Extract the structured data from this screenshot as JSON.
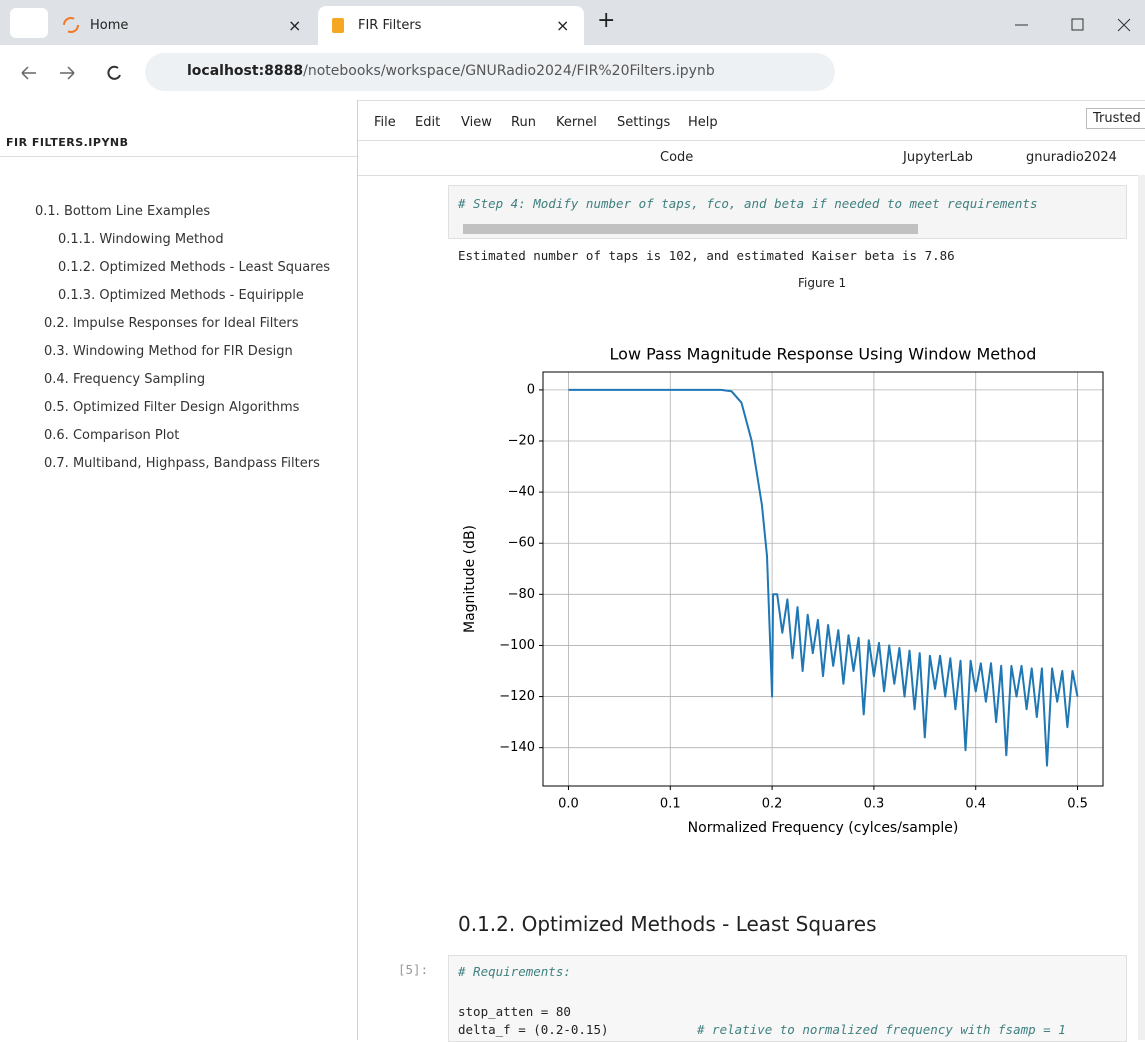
{
  "browser": {
    "tabs": [
      {
        "title": "Home"
      },
      {
        "title": "FIR Filters"
      }
    ],
    "url_host": "localhost:8888",
    "url_path": "/notebooks/workspace/GNURadio2024/FIR%20Filters.ipynb"
  },
  "sidebar": {
    "title": "FIR FILTERS.IPYNB",
    "toc": [
      {
        "label": "0.1. Bottom Line Examples",
        "level": 1
      },
      {
        "label": "0.1.1. Windowing Method",
        "level": 2
      },
      {
        "label": "0.1.2. Optimized Methods - Least Squares",
        "level": 2
      },
      {
        "label": "0.1.3. Optimized Methods - Equiripple",
        "level": 2
      },
      {
        "label": "0.2. Impulse Responses for Ideal Filters",
        "level": 1
      },
      {
        "label": "0.3. Windowing Method for FIR Design",
        "level": 1
      },
      {
        "label": "0.4. Frequency Sampling",
        "level": 1
      },
      {
        "label": "0.5. Optimized Filter Design Algorithms",
        "level": 1
      },
      {
        "label": "0.6. Comparison Plot",
        "level": 1
      },
      {
        "label": "0.7. Multiband, Highpass, Bandpass Filters",
        "level": 1
      }
    ]
  },
  "menu": [
    "File",
    "Edit",
    "View",
    "Run",
    "Kernel",
    "Settings",
    "Help"
  ],
  "trusted": "Trusted",
  "toolbar": {
    "cell_type": "Code",
    "jupyterlab": "JupyterLab",
    "kernel": "gnuradio2024"
  },
  "cells": {
    "comment": "# Step 4: Modify number of taps, fco, and beta if needed to meet requirements",
    "output": "Estimated number of taps is 102, and estimated Kaiser beta is 7.86",
    "figure_label": "Figure 1",
    "heading": "0.1.2. Optimized Methods - Least Squares",
    "prompt": "[5]:",
    "code_comment": "# Requirements:",
    "code_lines": [
      {
        "code": "stop_atten = 80"
      },
      {
        "code": "delta_f  = (0.2-0.15)",
        "comment": "# relative to normalized frequency with fsamp = 1"
      }
    ]
  },
  "chart_data": {
    "type": "line",
    "title": "Low Pass Magnitude Response Using Window Method",
    "x_label": "Normalized Frequency (cylces/sample)",
    "y_label": "Magnitude (dB)",
    "color": "#1f77b4",
    "grid": true,
    "xlim": [
      -0.025,
      0.525
    ],
    "ylim": [
      -155,
      7
    ],
    "xticks": [
      {
        "value": 0,
        "label": "0.0"
      },
      0.1,
      0.2,
      0.3,
      0.4,
      0.5
    ],
    "yticks": [
      0,
      {
        "value": -20,
        "label": "−20"
      },
      {
        "value": -40,
        "label": "−40"
      },
      {
        "value": -60,
        "label": "−60"
      },
      {
        "value": -80,
        "label": "−80"
      },
      {
        "value": -100,
        "label": "−100"
      },
      {
        "value": -120,
        "label": "−120"
      },
      {
        "value": -140,
        "label": "−140"
      }
    ],
    "x": [
      0,
      0.15,
      0.16,
      0.17,
      0.18,
      0.19,
      0.195,
      0.2,
      0.201,
      0.205,
      0.21,
      0.215,
      0.22,
      0.225,
      0.23,
      0.235,
      0.24,
      0.245,
      0.25,
      0.255,
      0.26,
      0.265,
      0.27,
      0.275,
      0.28,
      0.285,
      0.29,
      0.295,
      0.3,
      0.305,
      0.31,
      0.315,
      0.32,
      0.325,
      0.33,
      0.335,
      0.34,
      0.345,
      0.35,
      0.355,
      0.36,
      0.365,
      0.37,
      0.375,
      0.38,
      0.385,
      0.39,
      0.395,
      0.4,
      0.405,
      0.41,
      0.415,
      0.42,
      0.425,
      0.43,
      0.435,
      0.44,
      0.445,
      0.45,
      0.455,
      0.46,
      0.465,
      0.47,
      0.475,
      0.48,
      0.485,
      0.49,
      0.495,
      0.5
    ],
    "y": [
      0,
      0,
      -0.5,
      -5,
      -20,
      -45,
      -65,
      -120,
      -80,
      -80,
      -95,
      -82,
      -105,
      -85,
      -110,
      -88,
      -103,
      -90,
      -112,
      -92,
      -108,
      -94,
      -115,
      -96,
      -110,
      -97,
      -127,
      -98,
      -112,
      -99,
      -118,
      -100,
      -115,
      -101,
      -120,
      -102,
      -125,
      -103,
      -136,
      -104,
      -117,
      -104,
      -120,
      -105,
      -125,
      -106,
      -141,
      -106,
      -118,
      -107,
      -122,
      -107,
      -130,
      -108,
      -143,
      -108,
      -120,
      -108,
      -125,
      -109,
      -128,
      -109,
      -147,
      -109,
      -122,
      -110,
      -132,
      -110,
      -120
    ]
  }
}
